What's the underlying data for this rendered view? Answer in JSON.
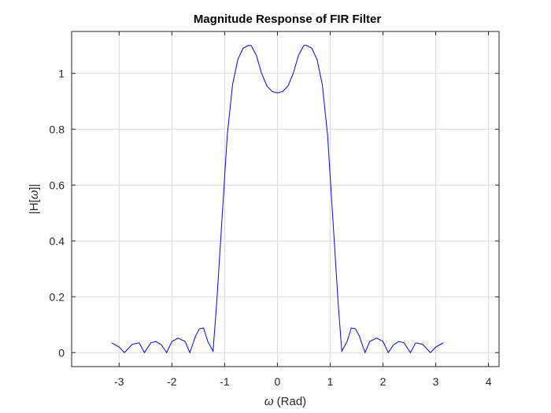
{
  "chart_data": {
    "type": "line",
    "title": "Magnitude Response of FIR Filter",
    "xlabel_symbol": "ω",
    "xlabel_text": " (Rad)",
    "ylabel_prefix": "|H[",
    "ylabel_symbol": "ω",
    "ylabel_suffix": "]|",
    "xlim": [
      -3.9,
      4.2
    ],
    "ylim": [
      -0.05,
      1.15
    ],
    "xticks": [
      -3,
      -2,
      -1,
      0,
      1,
      2,
      3,
      4
    ],
    "xtick_labels": [
      "-3",
      "-2",
      "-1",
      "0",
      "1",
      "2",
      "3",
      "4"
    ],
    "yticks": [
      0,
      0.2,
      0.4,
      0.6,
      0.8,
      1
    ],
    "ytick_labels": [
      "0",
      "0.2",
      "0.4",
      "0.6",
      "0.8",
      "1"
    ],
    "grid": true,
    "line_color": "#0000ff",
    "series": [
      {
        "x": [
          -3.1416,
          -3.0,
          -2.9,
          -2.75,
          -2.62,
          -2.52,
          -2.4,
          -2.3,
          -2.2,
          -2.1,
          -2.0,
          -1.88,
          -1.75,
          -1.66,
          -1.55,
          -1.48,
          -1.4,
          -1.32,
          -1.22,
          -1.15,
          -1.05,
          -0.95,
          -0.85,
          -0.75,
          -0.65,
          -0.55,
          -0.5,
          -0.4,
          -0.3,
          -0.2,
          -0.1,
          0.0,
          0.1,
          0.2,
          0.3,
          0.4,
          0.5,
          0.55,
          0.65,
          0.75,
          0.85,
          0.95,
          1.05,
          1.15,
          1.22,
          1.32,
          1.4,
          1.48,
          1.55,
          1.66,
          1.75,
          1.88,
          2.0,
          2.1,
          2.2,
          2.3,
          2.4,
          2.52,
          2.62,
          2.75,
          2.9,
          3.0,
          3.1416
        ],
        "y": [
          0.035,
          0.02,
          0.0,
          0.03,
          0.035,
          0.0,
          0.035,
          0.04,
          0.028,
          0.0,
          0.04,
          0.052,
          0.04,
          0.0,
          0.06,
          0.085,
          0.088,
          0.04,
          0.005,
          0.18,
          0.48,
          0.78,
          0.96,
          1.05,
          1.09,
          1.1,
          1.1,
          1.065,
          1.0,
          0.955,
          0.935,
          0.93,
          0.935,
          0.955,
          1.0,
          1.065,
          1.1,
          1.1,
          1.09,
          1.05,
          0.96,
          0.78,
          0.48,
          0.18,
          0.005,
          0.04,
          0.088,
          0.085,
          0.06,
          0.0,
          0.04,
          0.052,
          0.04,
          0.0,
          0.028,
          0.04,
          0.035,
          0.0,
          0.035,
          0.03,
          0.0,
          0.02,
          0.035
        ]
      }
    ]
  }
}
